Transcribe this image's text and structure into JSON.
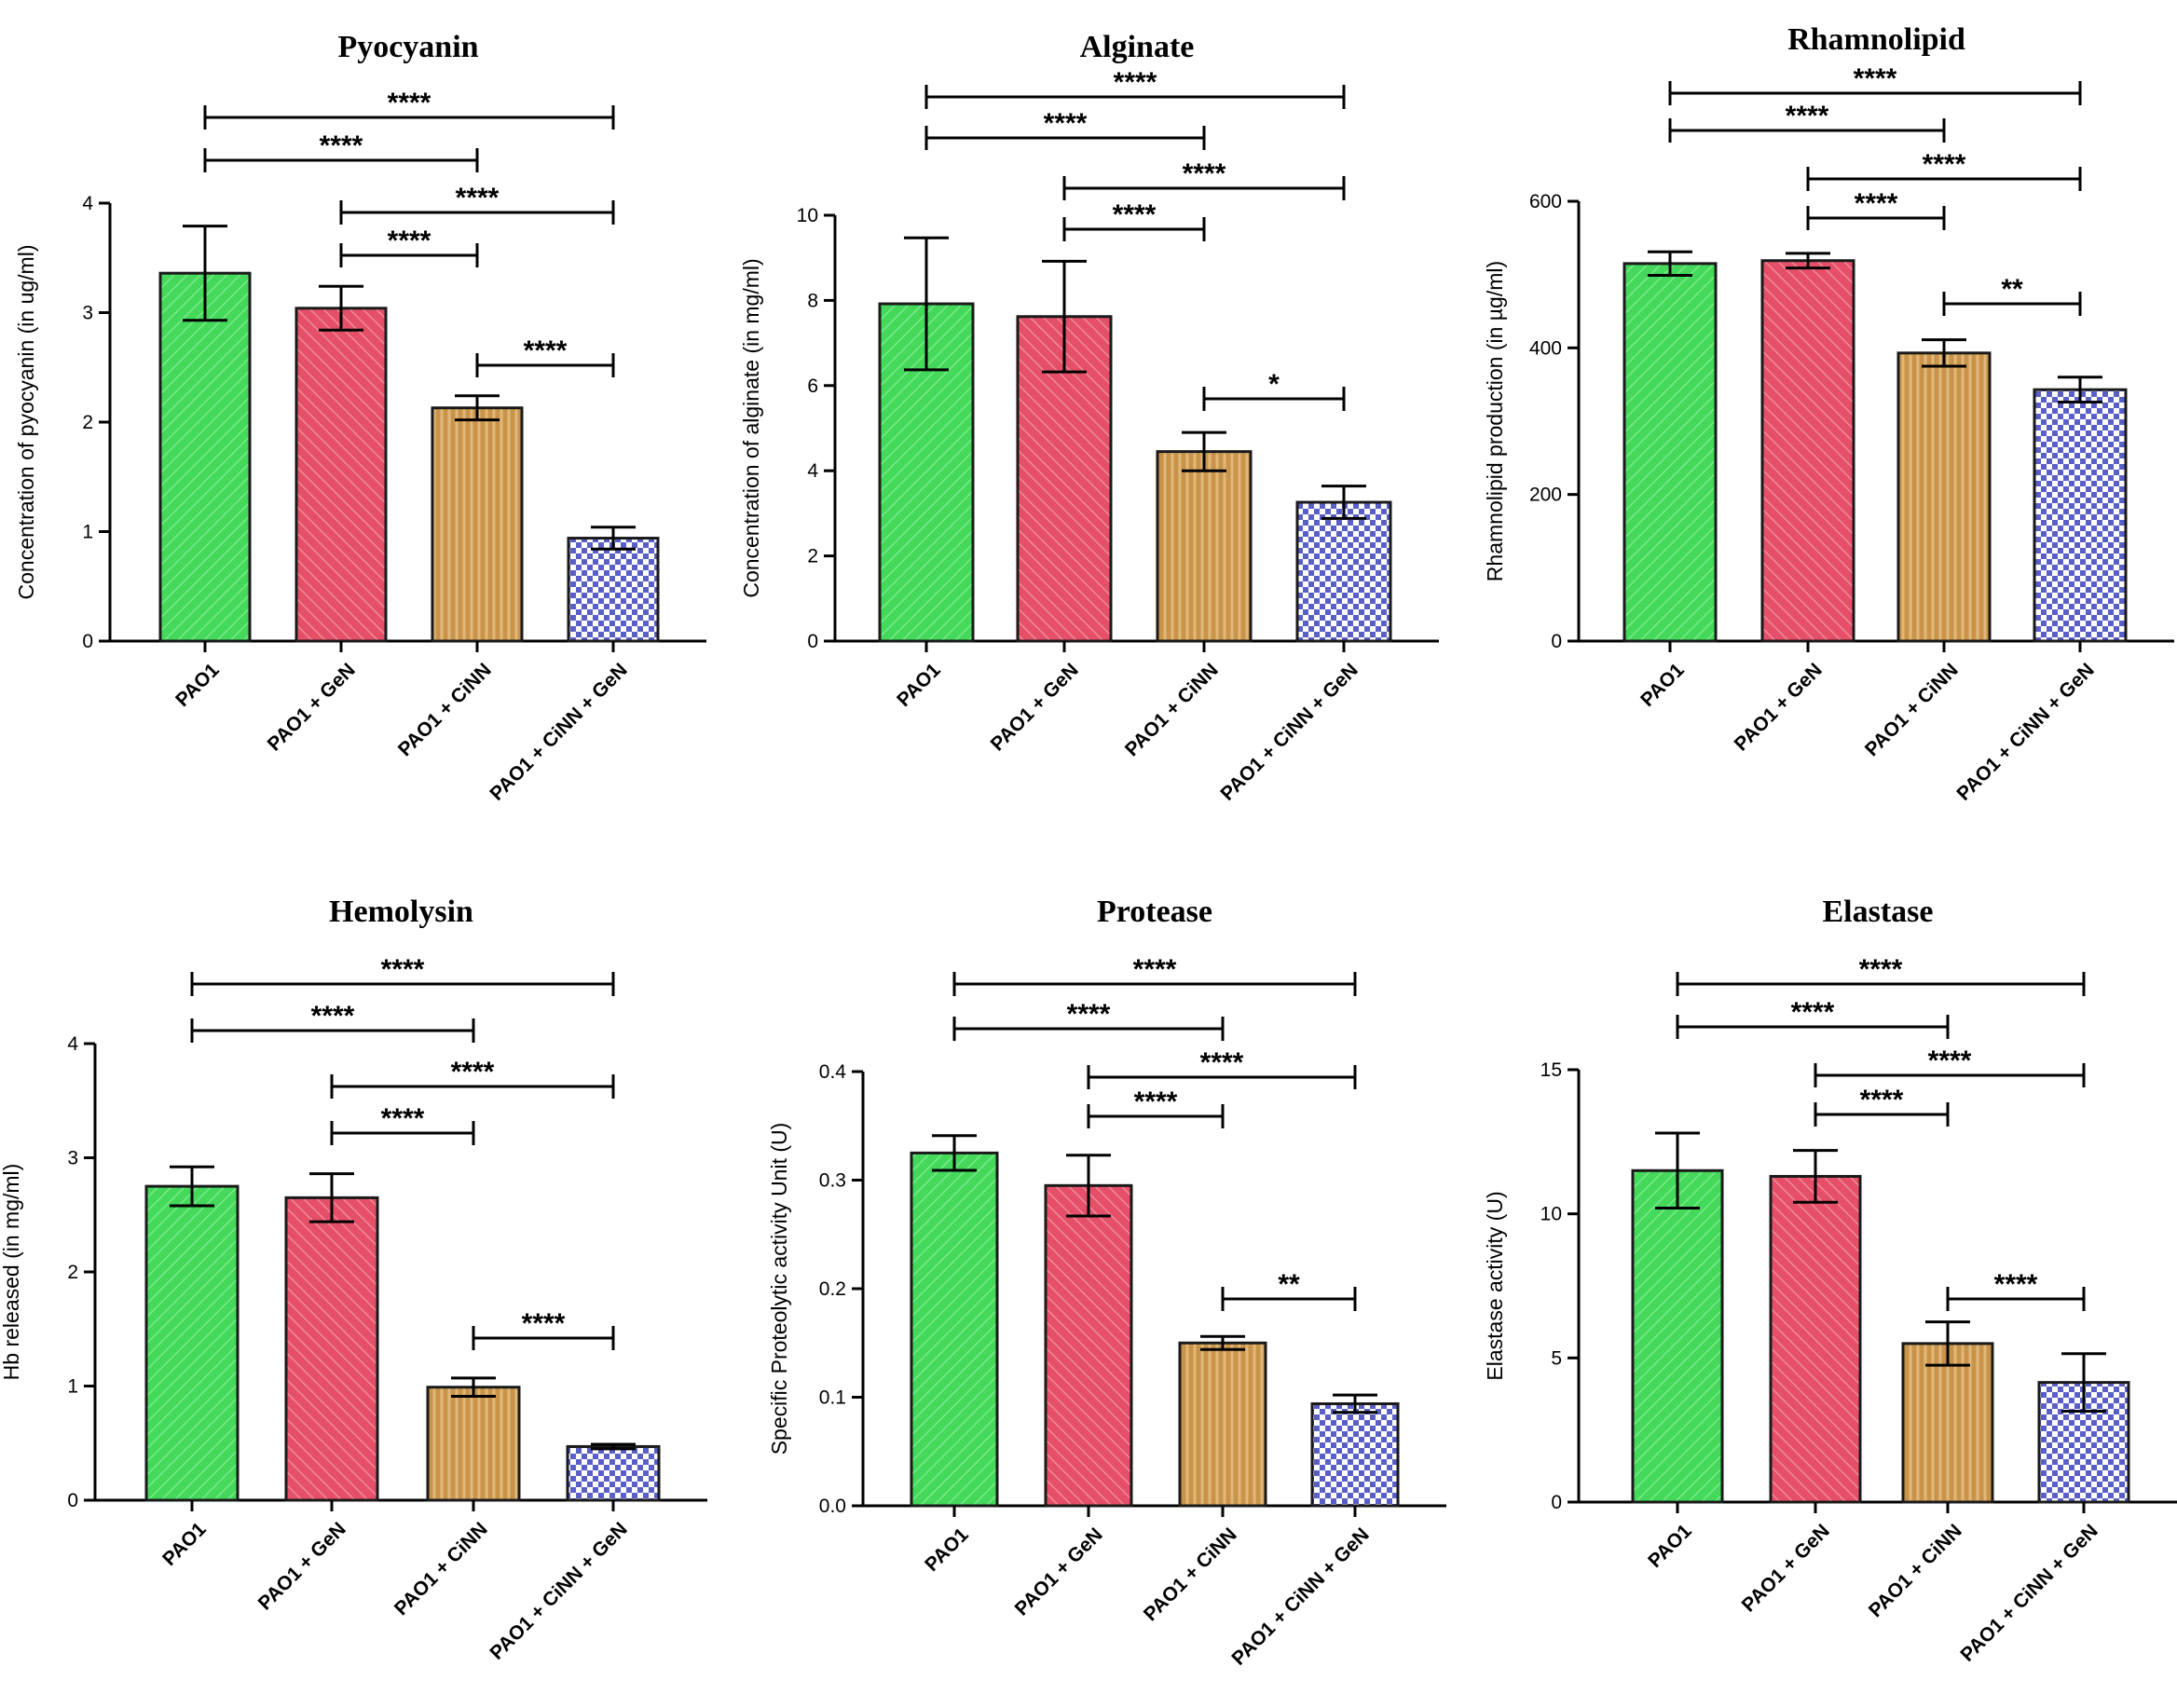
{
  "figure": {
    "categories": [
      "PAO1",
      "PAO1 + GeN",
      "PAO1 + CiNN",
      "PAO1 + CiNN + GeN"
    ],
    "bar_colors": [
      "#44d95a",
      "#e55068",
      "#c9944a",
      "#6a6fd0"
    ],
    "bar_patterns": [
      "diagonal-up",
      "diagonal-down",
      "vertical",
      "checker"
    ]
  },
  "chart_data": [
    {
      "type": "bar",
      "title": "Pyocyanin",
      "ylabel": "Concentration of pyocyanin (in ug/ml)",
      "ylim": [
        0,
        4
      ],
      "yticks": [
        0,
        1,
        2,
        3,
        4
      ],
      "tick_labels": [
        "0",
        "1",
        "2",
        "3",
        "4"
      ],
      "categories": [
        "PAO1",
        "PAO1 + GeN",
        "PAO1 + CiNN",
        "PAO1 + CiNN + GeN"
      ],
      "values": [
        3.36,
        3.04,
        2.13,
        0.94
      ],
      "errors": [
        0.43,
        0.2,
        0.11,
        0.1
      ],
      "comparisons": [
        {
          "from": 0,
          "to": 3,
          "label": "****"
        },
        {
          "from": 0,
          "to": 2,
          "label": "****"
        },
        {
          "from": 1,
          "to": 3,
          "label": "****"
        },
        {
          "from": 1,
          "to": 2,
          "label": "****"
        },
        {
          "from": 2,
          "to": 3,
          "label": "****"
        }
      ]
    },
    {
      "type": "bar",
      "title": "Alginate",
      "ylabel": "Concentration of alginate (in mg/ml)",
      "ylim": [
        0,
        10
      ],
      "yticks": [
        0,
        2,
        4,
        6,
        8,
        10
      ],
      "tick_labels": [
        "0",
        "2",
        "4",
        "6",
        "8",
        "10"
      ],
      "categories": [
        "PAO1",
        "PAO1 + GeN",
        "PAO1 + CiNN",
        "PAO1 + CiNN + GeN"
      ],
      "values": [
        7.92,
        7.62,
        4.45,
        3.26
      ],
      "errors": [
        1.55,
        1.3,
        0.45,
        0.38
      ],
      "comparisons": [
        {
          "from": 0,
          "to": 3,
          "label": "****"
        },
        {
          "from": 0,
          "to": 2,
          "label": "****"
        },
        {
          "from": 1,
          "to": 3,
          "label": "****"
        },
        {
          "from": 1,
          "to": 2,
          "label": "****"
        },
        {
          "from": 2,
          "to": 3,
          "label": "*"
        }
      ]
    },
    {
      "type": "bar",
      "title": "Rhamnolipid",
      "ylabel": "Rhamnolipid production (in µg/ml)",
      "ylim": [
        0,
        600
      ],
      "yticks": [
        0,
        200,
        400,
        600
      ],
      "tick_labels": [
        "0",
        "200",
        "400",
        "600"
      ],
      "categories": [
        "PAO1",
        "PAO1 + GeN",
        "PAO1 + CiNN",
        "PAO1 + CiNN + GeN"
      ],
      "values": [
        515,
        519,
        393,
        343
      ],
      "errors": [
        16,
        10,
        18,
        17
      ],
      "comparisons": [
        {
          "from": 0,
          "to": 3,
          "label": "****"
        },
        {
          "from": 0,
          "to": 2,
          "label": "****"
        },
        {
          "from": 1,
          "to": 3,
          "label": "****"
        },
        {
          "from": 1,
          "to": 2,
          "label": "****"
        },
        {
          "from": 2,
          "to": 3,
          "label": "**"
        }
      ]
    },
    {
      "type": "bar",
      "title": "Hemolysin",
      "ylabel": "Hb released (in mg/ml)",
      "ylim": [
        0,
        4
      ],
      "yticks": [
        0,
        1,
        2,
        3,
        4
      ],
      "tick_labels": [
        "0",
        "1",
        "2",
        "3",
        "4"
      ],
      "categories": [
        "PAO1",
        "PAO1 + GeN",
        "PAO1 + CiNN",
        "PAO1 + CiNN + GeN"
      ],
      "values": [
        2.75,
        2.65,
        0.99,
        0.47
      ],
      "errors": [
        0.17,
        0.21,
        0.08,
        0.02
      ],
      "comparisons": [
        {
          "from": 0,
          "to": 3,
          "label": "****"
        },
        {
          "from": 0,
          "to": 2,
          "label": "****"
        },
        {
          "from": 1,
          "to": 3,
          "label": "****"
        },
        {
          "from": 1,
          "to": 2,
          "label": "****"
        },
        {
          "from": 2,
          "to": 3,
          "label": "****"
        }
      ]
    },
    {
      "type": "bar",
      "title": "Protease",
      "ylabel": "Specific Proteolytic activity Unit (U)",
      "ylim": [
        0,
        0.4
      ],
      "yticks": [
        0,
        0.1,
        0.2,
        0.3,
        0.4
      ],
      "tick_labels": [
        "0.0",
        "0.1",
        "0.2",
        "0.3",
        "0.4"
      ],
      "categories": [
        "PAO1",
        "PAO1 + GeN",
        "PAO1 + CiNN",
        "PAO1 + CiNN + GeN"
      ],
      "values": [
        0.325,
        0.295,
        0.15,
        0.094
      ],
      "errors": [
        0.016,
        0.028,
        0.006,
        0.008
      ],
      "comparisons": [
        {
          "from": 0,
          "to": 3,
          "label": "****"
        },
        {
          "from": 0,
          "to": 2,
          "label": "****"
        },
        {
          "from": 1,
          "to": 3,
          "label": "****"
        },
        {
          "from": 1,
          "to": 2,
          "label": "****"
        },
        {
          "from": 2,
          "to": 3,
          "label": "**"
        }
      ]
    },
    {
      "type": "bar",
      "title": "Elastase",
      "ylabel": "Elastase activity (U)",
      "ylim": [
        0,
        15
      ],
      "yticks": [
        0,
        5,
        10,
        15
      ],
      "tick_labels": [
        "0",
        "5",
        "10",
        "15"
      ],
      "categories": [
        "PAO1",
        "PAO1 + GeN",
        "PAO1 + CiNN",
        "PAO1 + CiNN + GeN"
      ],
      "values": [
        11.5,
        11.3,
        5.5,
        4.15
      ],
      "errors": [
        1.3,
        0.9,
        0.75,
        1.0
      ],
      "comparisons": [
        {
          "from": 0,
          "to": 3,
          "label": "****"
        },
        {
          "from": 0,
          "to": 2,
          "label": "****"
        },
        {
          "from": 1,
          "to": 3,
          "label": "****"
        },
        {
          "from": 1,
          "to": 2,
          "label": "****"
        },
        {
          "from": 2,
          "to": 3,
          "label": "****"
        }
      ]
    }
  ]
}
